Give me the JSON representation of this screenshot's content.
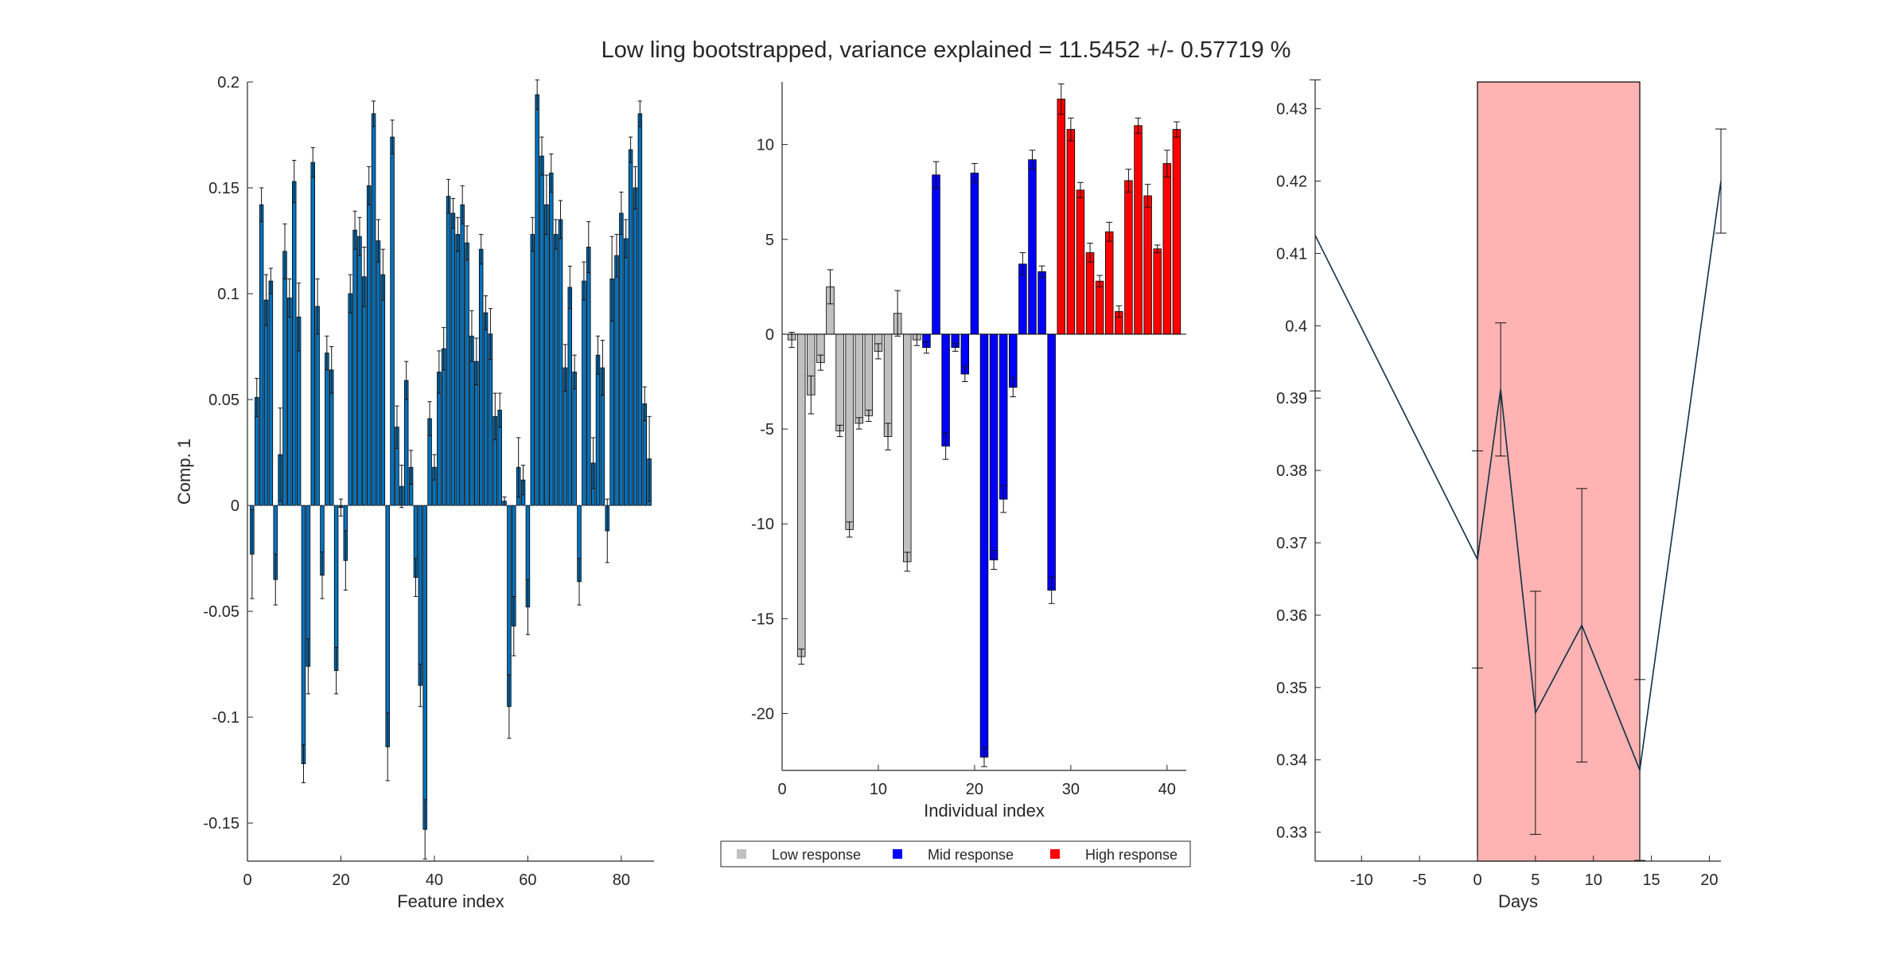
{
  "title": "Low ling bootstrapped, variance explained = 11.5452 +/- 0.57719 %",
  "chart_data": [
    {
      "type": "bar",
      "xlabel": "Feature index",
      "ylabel": "Comp. 1",
      "xlim": [
        0,
        87
      ],
      "ylim": [
        -0.168,
        0.2
      ],
      "xticks": [
        0,
        20,
        40,
        60,
        80
      ],
      "yticks": [
        -0.15,
        -0.1,
        -0.05,
        0,
        0.05,
        0.1,
        0.15,
        0.2
      ],
      "ytick_labels": [
        "-0.15",
        "-0.1",
        "-0.05",
        "0",
        "0.05",
        "0.1",
        "0.15",
        "0.2"
      ],
      "color": "#0072bd",
      "values": [
        -0.023,
        0.051,
        0.142,
        0.097,
        0.106,
        -0.035,
        0.024,
        0.12,
        0.098,
        0.153,
        0.089,
        -0.122,
        -0.076,
        0.162,
        0.094,
        -0.033,
        0.072,
        0.064,
        -0.078,
        -0.001,
        -0.026,
        0.1,
        0.13,
        0.127,
        0.108,
        0.151,
        0.185,
        0.125,
        0.109,
        -0.114,
        0.174,
        0.037,
        0.009,
        0.059,
        0.018,
        -0.034,
        -0.085,
        -0.153,
        0.041,
        0.018,
        0.063,
        0.074,
        0.146,
        0.138,
        0.128,
        0.142,
        0.124,
        0.08,
        0.068,
        0.121,
        0.091,
        0.081,
        0.042,
        0.045,
        0.002,
        -0.095,
        -0.057,
        0.018,
        0.012,
        -0.048,
        0.128,
        0.194,
        0.165,
        0.142,
        0.157,
        0.128,
        0.135,
        0.065,
        0.103,
        0.063,
        -0.036,
        0.106,
        0.122,
        0.02,
        0.071,
        0.065,
        -0.012,
        0.107,
        0.118,
        0.138,
        0.126,
        0.168,
        0.15,
        0.185,
        0.048,
        0.022
      ],
      "errors": [
        0.021,
        0.009,
        0.008,
        0.012,
        0.006,
        0.012,
        0.022,
        0.013,
        0.009,
        0.01,
        0.016,
        0.009,
        0.013,
        0.007,
        0.013,
        0.011,
        0.008,
        0.011,
        0.011,
        0.004,
        0.014,
        0.009,
        0.009,
        0.009,
        0.014,
        0.009,
        0.006,
        0.01,
        0.012,
        0.016,
        0.008,
        0.01,
        0.01,
        0.009,
        0.008,
        0.009,
        0.01,
        0.014,
        0.008,
        0.006,
        0.01,
        0.01,
        0.008,
        0.007,
        0.008,
        0.009,
        0.008,
        0.012,
        0.011,
        0.007,
        0.008,
        0.012,
        0.011,
        0.008,
        0.002,
        0.015,
        0.014,
        0.014,
        0.007,
        0.013,
        0.008,
        0.007,
        0.009,
        0.014,
        0.009,
        0.007,
        0.009,
        0.011,
        0.01,
        0.008,
        0.011,
        0.009,
        0.012,
        0.012,
        0.009,
        0.013,
        0.015,
        0.02,
        0.01,
        0.01,
        0.009,
        0.006,
        0.01,
        0.006,
        0.008,
        0.02
      ]
    },
    {
      "type": "bar",
      "xlabel": "Individual index",
      "ylabel": "",
      "xlim": [
        0,
        42
      ],
      "ylim": [
        -23,
        13.3
      ],
      "xticks": [
        0,
        10,
        20,
        30,
        40
      ],
      "yticks": [
        -20,
        -15,
        -10,
        -5,
        0,
        5,
        10
      ],
      "ytick_labels": [
        "-20",
        "-15",
        "-10",
        "-5",
        "0",
        "5",
        "10"
      ],
      "values": [
        -0.3,
        -17,
        -3.2,
        -1.5,
        2.5,
        -5.1,
        -10.3,
        -4.7,
        -4.3,
        -0.9,
        -5.4,
        1.1,
        -12,
        -0.3,
        -0.7,
        8.4,
        -5.9,
        -0.7,
        -2.1,
        8.5,
        -22.3,
        -11.9,
        -8.7,
        -2.8,
        3.7,
        9.2,
        3.3,
        -13.5,
        12.4,
        10.8,
        7.6,
        4.3,
        2.8,
        5.4,
        1.2,
        8.1,
        11,
        7.3,
        4.5,
        9,
        10.8
      ],
      "errors": [
        0.4,
        0.4,
        1,
        0.4,
        0.9,
        0.3,
        0.4,
        0.3,
        0.3,
        0.4,
        0.7,
        1.2,
        0.5,
        0.3,
        0.3,
        0.7,
        0.7,
        0.2,
        0.4,
        0.5,
        0.5,
        0.5,
        0.7,
        0.5,
        0.6,
        0.5,
        0.3,
        0.7,
        0.8,
        0.6,
        0.4,
        0.5,
        0.3,
        0.5,
        0.3,
        0.6,
        0.4,
        0.6,
        0.2,
        0.7,
        0.4
      ],
      "groups": [
        "Low response",
        "Low response",
        "Low response",
        "Low response",
        "Low response",
        "Low response",
        "Low response",
        "Low response",
        "Low response",
        "Low response",
        "Low response",
        "Low response",
        "Low response",
        "Low response",
        "Mid response",
        "Mid response",
        "Mid response",
        "Mid response",
        "Mid response",
        "Mid response",
        "Mid response",
        "Mid response",
        "Mid response",
        "Mid response",
        "Mid response",
        "Mid response",
        "Mid response",
        "Mid response",
        "High response",
        "High response",
        "High response",
        "High response",
        "High response",
        "High response",
        "High response",
        "High response",
        "High response",
        "High response",
        "High response",
        "High response",
        "High response"
      ],
      "legend": {
        "placement": "below",
        "entries": [
          {
            "label": "Low response",
            "color": "#c0c0c0"
          },
          {
            "label": "Mid response",
            "color": "#0000ff"
          },
          {
            "label": "High response",
            "color": "#ff0000"
          }
        ]
      }
    },
    {
      "type": "line",
      "xlabel": "Days",
      "ylabel": "",
      "xlim": [
        -14,
        21
      ],
      "ylim": [
        0.326,
        0.4337
      ],
      "xticks": [
        -10,
        -5,
        0,
        5,
        10,
        15,
        20
      ],
      "yticks": [
        0.33,
        0.34,
        0.35,
        0.36,
        0.37,
        0.38,
        0.39,
        0.4,
        0.41,
        0.42,
        0.43
      ],
      "ytick_labels": [
        "0.33",
        "0.34",
        "0.35",
        "0.36",
        "0.37",
        "0.38",
        "0.39",
        "0.4",
        "0.41",
        "0.42",
        "0.43"
      ],
      "x": [
        -14,
        0,
        2,
        5,
        9,
        14,
        21
      ],
      "y": [
        0.4125,
        0.3677,
        0.3912,
        0.3465,
        0.3586,
        0.3386,
        0.42
      ],
      "errors": [
        0.0215,
        0.015,
        0.0092,
        0.0168,
        0.0189,
        0.0125,
        0.0072
      ],
      "shaded_region": {
        "x": [
          0,
          14
        ],
        "color": "#ffb3b3"
      }
    }
  ]
}
